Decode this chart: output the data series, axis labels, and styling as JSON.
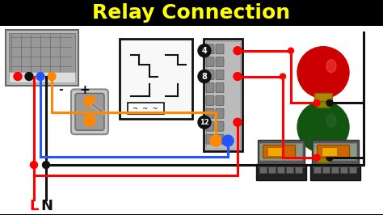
{
  "title": "Relay Connection",
  "title_color": "#FFFF00",
  "title_fontsize": 18,
  "title_fontweight": "bold",
  "bg_color": "#000000",
  "diagram_bg": "#FFFFFF",
  "wire_colors": {
    "red": "#FF0000",
    "black": "#111111",
    "blue": "#2255FF",
    "orange": "#FF8800"
  },
  "figsize": [
    4.74,
    2.66
  ],
  "dpi": 100
}
